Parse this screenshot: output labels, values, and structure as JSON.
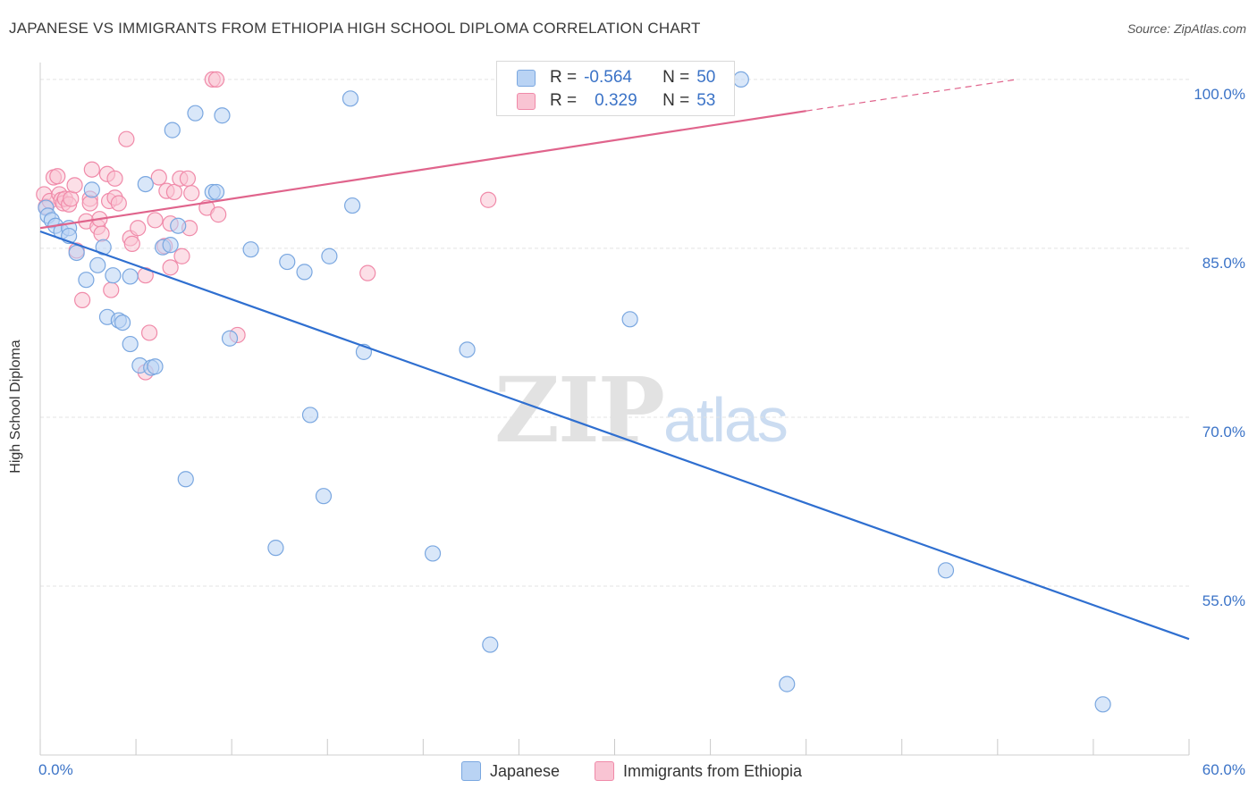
{
  "title": "JAPANESE VS IMMIGRANTS FROM ETHIOPIA HIGH SCHOOL DIPLOMA CORRELATION CHART",
  "source": "Source: ZipAtlas.com",
  "watermark": {
    "zip": "ZIP",
    "atlas": "atlas"
  },
  "stats": {
    "japanese": {
      "r_label": "R = ",
      "r": "-0.564",
      "n_label": "N = ",
      "n": "50"
    },
    "ethiopia": {
      "r_label": "R = ",
      "r": "0.329",
      "n_label": "N = ",
      "n": "53"
    }
  },
  "legend": {
    "japanese": "Japanese",
    "ethiopia": "Immigrants from Ethiopia"
  },
  "colors": {
    "japanese_fill": "#b9d3f4",
    "japanese_stroke": "#7aa7e0",
    "japanese_line": "#2f6fd0",
    "ethiopia_fill": "#f9c4d3",
    "ethiopia_stroke": "#f08aa9",
    "ethiopia_line": "#e0648c",
    "tick_text": "#3b73c7",
    "grid": "#e3e3e3"
  },
  "chart_data": {
    "type": "scatter",
    "xlabel": "",
    "ylabel": "High School Diploma",
    "xlim": [
      0,
      60
    ],
    "ylim": [
      40,
      101.5
    ],
    "x_ticks": [
      {
        "value": 0,
        "label": "0.0%"
      },
      {
        "value": 60,
        "label": "60.0%"
      }
    ],
    "y_ticks": [
      {
        "value": 100,
        "label": "100.0%"
      },
      {
        "value": 85,
        "label": "85.0%"
      },
      {
        "value": 70,
        "label": "70.0%"
      },
      {
        "value": 55,
        "label": "55.0%"
      }
    ],
    "grid": true,
    "series": [
      {
        "name": "Japanese",
        "trend": {
          "x0": 0,
          "y0": 86.5,
          "x1": 60,
          "y1": 50.3
        },
        "points": [
          [
            0.3,
            88.6
          ],
          [
            0.4,
            87.9
          ],
          [
            0.6,
            87.5
          ],
          [
            0.8,
            87.0
          ],
          [
            1.1,
            86.5
          ],
          [
            1.5,
            86.8
          ],
          [
            1.5,
            86.1
          ],
          [
            1.9,
            84.6
          ],
          [
            2.4,
            82.2
          ],
          [
            2.7,
            90.2
          ],
          [
            3.0,
            83.5
          ],
          [
            3.3,
            85.1
          ],
          [
            3.5,
            78.9
          ],
          [
            3.8,
            82.6
          ],
          [
            4.1,
            78.6
          ],
          [
            4.3,
            78.4
          ],
          [
            4.7,
            76.5
          ],
          [
            4.7,
            82.5
          ],
          [
            5.2,
            74.6
          ],
          [
            5.5,
            90.7
          ],
          [
            5.8,
            74.4
          ],
          [
            6.0,
            74.5
          ],
          [
            6.4,
            85.1
          ],
          [
            6.8,
            85.3
          ],
          [
            6.9,
            95.5
          ],
          [
            7.2,
            87.0
          ],
          [
            7.6,
            64.5
          ],
          [
            8.1,
            97.0
          ],
          [
            9.0,
            90.0
          ],
          [
            9.2,
            90.0
          ],
          [
            9.5,
            96.8
          ],
          [
            9.9,
            77.0
          ],
          [
            11.0,
            84.9
          ],
          [
            12.3,
            58.4
          ],
          [
            12.9,
            83.8
          ],
          [
            13.8,
            82.9
          ],
          [
            14.1,
            70.2
          ],
          [
            14.8,
            63.0
          ],
          [
            15.1,
            84.3
          ],
          [
            16.2,
            98.3
          ],
          [
            16.3,
            88.8
          ],
          [
            16.9,
            75.8
          ],
          [
            20.5,
            57.9
          ],
          [
            22.3,
            76.0
          ],
          [
            23.5,
            49.8
          ],
          [
            30.8,
            78.7
          ],
          [
            36.6,
            100.0
          ],
          [
            39.0,
            46.3
          ],
          [
            47.3,
            56.4
          ],
          [
            55.5,
            44.5
          ]
        ]
      },
      {
        "name": "Immigrants from Ethiopia",
        "trend": {
          "x0": 0,
          "y0": 86.8,
          "x1": 40,
          "y1": 97.2,
          "dash_x1": 51,
          "dash_y1": 100.0
        },
        "points": [
          [
            0.2,
            89.8
          ],
          [
            0.3,
            88.7
          ],
          [
            0.5,
            89.2
          ],
          [
            0.7,
            91.3
          ],
          [
            0.9,
            91.4
          ],
          [
            1.0,
            89.8
          ],
          [
            1.1,
            89.3
          ],
          [
            1.2,
            89.0
          ],
          [
            1.3,
            89.4
          ],
          [
            1.5,
            88.9
          ],
          [
            1.6,
            89.4
          ],
          [
            1.8,
            90.6
          ],
          [
            1.9,
            84.8
          ],
          [
            2.2,
            80.4
          ],
          [
            2.4,
            87.4
          ],
          [
            2.6,
            89.4
          ],
          [
            2.6,
            89.0
          ],
          [
            2.7,
            92.0
          ],
          [
            3.0,
            86.9
          ],
          [
            3.1,
            87.6
          ],
          [
            3.2,
            86.3
          ],
          [
            3.5,
            91.6
          ],
          [
            3.6,
            89.2
          ],
          [
            3.7,
            81.3
          ],
          [
            3.9,
            89.5
          ],
          [
            3.9,
            91.2
          ],
          [
            4.1,
            89.0
          ],
          [
            4.5,
            94.7
          ],
          [
            4.7,
            85.9
          ],
          [
            4.8,
            85.4
          ],
          [
            5.1,
            86.8
          ],
          [
            5.5,
            82.6
          ],
          [
            5.7,
            77.5
          ],
          [
            5.5,
            74.0
          ],
          [
            6.0,
            87.5
          ],
          [
            6.2,
            91.3
          ],
          [
            6.5,
            85.2
          ],
          [
            6.6,
            90.1
          ],
          [
            6.8,
            87.2
          ],
          [
            6.8,
            83.3
          ],
          [
            7.0,
            90.0
          ],
          [
            7.3,
            91.2
          ],
          [
            7.4,
            84.3
          ],
          [
            7.7,
            91.2
          ],
          [
            7.8,
            86.8
          ],
          [
            7.9,
            89.9
          ],
          [
            8.7,
            88.6
          ],
          [
            9.0,
            100.0
          ],
          [
            9.2,
            100.0
          ],
          [
            9.3,
            88.0
          ],
          [
            10.3,
            77.3
          ],
          [
            17.1,
            82.8
          ],
          [
            23.4,
            89.3
          ]
        ]
      }
    ]
  }
}
